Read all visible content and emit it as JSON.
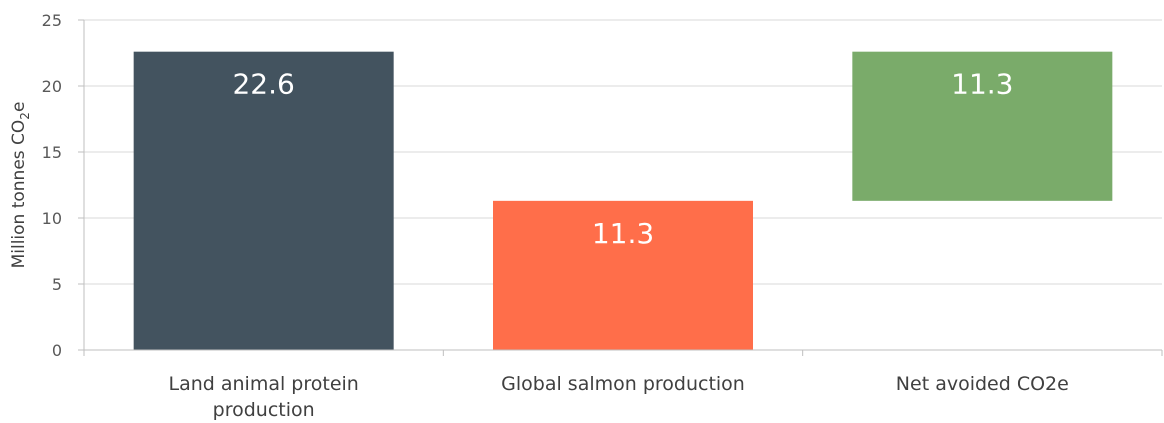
{
  "chart_data": {
    "type": "bar",
    "subtype": "waterfall",
    "categories": [
      [
        "Land animal protein",
        "production"
      ],
      [
        "Global salmon production"
      ],
      [
        "Net avoided CO2e"
      ]
    ],
    "bars": [
      {
        "category": "Land animal protein production",
        "base": 0,
        "top": 22.6,
        "label": "22.6",
        "color": "#43535f"
      },
      {
        "category": "Global salmon production",
        "base": 0,
        "top": 11.3,
        "label": "11.3",
        "color": "#ff6e4a"
      },
      {
        "category": "Net avoided CO2e",
        "base": 11.3,
        "top": 22.6,
        "label": "11.3",
        "color": "#7aab6a"
      }
    ],
    "ylabel": {
      "main": "Million tonnes CO",
      "sub": "2",
      "tail": "e"
    },
    "ylim": [
      0,
      25
    ],
    "yticks": [
      "0",
      "5",
      "10",
      "15",
      "20",
      "25"
    ],
    "grid": true,
    "legend": "none"
  }
}
